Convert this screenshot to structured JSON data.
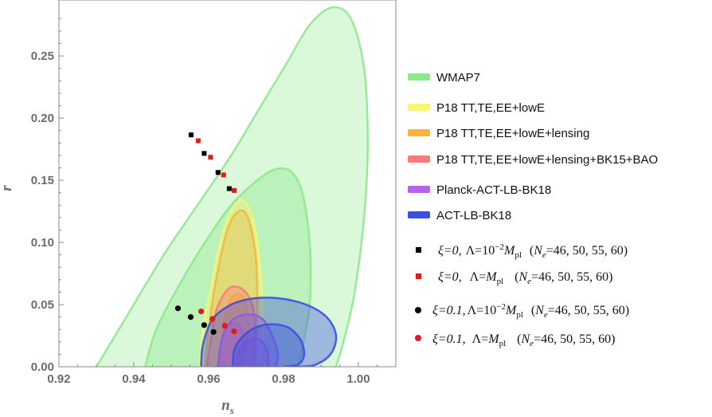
{
  "chart_data": {
    "type": "contour-scatter",
    "xlabel": "n_s",
    "ylabel": "r",
    "xlim": [
      0.92,
      1.01
    ],
    "ylim": [
      0.0,
      0.295
    ],
    "x_ticks": [
      0.92,
      0.94,
      0.96,
      0.98,
      1.0
    ],
    "x_tick_labels": [
      "0.92",
      "0.94",
      "0.96",
      "0.98",
      "1.00"
    ],
    "y_ticks": [
      0.0,
      0.05,
      0.1,
      0.15,
      0.2,
      0.25
    ],
    "y_tick_labels": [
      "0.00",
      "0.05",
      "0.10",
      "0.15",
      "0.20",
      "0.25"
    ],
    "grid": false,
    "legend_position": "right",
    "regions": [
      {
        "label": "WMAP7",
        "color": "#8ee88e",
        "contours": [
          [
            [
              0.93,
              0.0
            ],
            [
              0.938,
              0.04
            ],
            [
              0.948,
              0.09
            ],
            [
              0.957,
              0.13
            ],
            [
              0.966,
              0.17
            ],
            [
              0.974,
              0.21
            ],
            [
              0.981,
              0.245
            ],
            [
              0.987,
              0.275
            ],
            [
              0.993,
              0.289
            ],
            [
              0.998,
              0.28
            ],
            [
              1.0015,
              0.24
            ],
            [
              1.0025,
              0.18
            ],
            [
              1.0015,
              0.12
            ],
            [
              0.999,
              0.06
            ],
            [
              0.996,
              0.02
            ],
            [
              0.994,
              0.0
            ]
          ],
          [
            [
              0.943,
              0.0
            ],
            [
              0.946,
              0.03
            ],
            [
              0.952,
              0.065
            ],
            [
              0.959,
              0.1
            ],
            [
              0.966,
              0.13
            ],
            [
              0.973,
              0.15
            ],
            [
              0.978,
              0.159
            ],
            [
              0.982,
              0.157
            ],
            [
              0.985,
              0.14
            ],
            [
              0.987,
              0.1
            ],
            [
              0.987,
              0.05
            ],
            [
              0.985,
              0.015
            ],
            [
              0.984,
              0.0
            ]
          ]
        ]
      },
      {
        "label": "P18 TT,TE,EE+lowE",
        "color": "#f8f570",
        "contours": [
          [
            [
              0.9575,
              0.0
            ],
            [
              0.9585,
              0.03
            ],
            [
              0.961,
              0.07
            ],
            [
              0.964,
              0.11
            ],
            [
              0.9675,
              0.132
            ],
            [
              0.97,
              0.131
            ],
            [
              0.9725,
              0.11
            ],
            [
              0.974,
              0.07
            ],
            [
              0.9745,
              0.03
            ],
            [
              0.974,
              0.0
            ]
          ],
          [
            [
              0.9625,
              0.0
            ],
            [
              0.963,
              0.02
            ],
            [
              0.9645,
              0.045
            ],
            [
              0.966,
              0.058
            ],
            [
              0.9685,
              0.056
            ],
            [
              0.97,
              0.04
            ],
            [
              0.9705,
              0.015
            ],
            [
              0.97,
              0.0
            ]
          ]
        ]
      },
      {
        "label": "P18 TT,TE,EE+lowE+lensing",
        "color": "#fbb43a",
        "contours": [
          [
            [
              0.959,
              0.0
            ],
            [
              0.96,
              0.03
            ],
            [
              0.962,
              0.07
            ],
            [
              0.965,
              0.11
            ],
            [
              0.968,
              0.125
            ],
            [
              0.9705,
              0.12
            ],
            [
              0.9725,
              0.09
            ],
            [
              0.973,
              0.05
            ],
            [
              0.9725,
              0.015
            ],
            [
              0.972,
              0.0
            ]
          ],
          [
            [
              0.963,
              0.0
            ],
            [
              0.9635,
              0.025
            ],
            [
              0.965,
              0.048
            ],
            [
              0.967,
              0.058
            ],
            [
              0.9695,
              0.054
            ],
            [
              0.9705,
              0.035
            ],
            [
              0.97,
              0.01
            ],
            [
              0.9695,
              0.0
            ]
          ]
        ]
      },
      {
        "label": "P18 TT,TE,EE+lowE+lensing+BK15+BAO",
        "color": "#fa7a7a",
        "contours": [
          [
            [
              0.9595,
              0.0
            ],
            [
              0.9605,
              0.02
            ],
            [
              0.962,
              0.045
            ],
            [
              0.965,
              0.062
            ],
            [
              0.968,
              0.064
            ],
            [
              0.971,
              0.055
            ],
            [
              0.9725,
              0.035
            ],
            [
              0.9725,
              0.012
            ],
            [
              0.972,
              0.0
            ]
          ],
          [
            [
              0.9625,
              0.0
            ],
            [
              0.963,
              0.015
            ],
            [
              0.9645,
              0.03
            ],
            [
              0.9665,
              0.035
            ],
            [
              0.9685,
              0.032
            ],
            [
              0.9695,
              0.018
            ],
            [
              0.969,
              0.005
            ],
            [
              0.9685,
              0.0
            ]
          ]
        ]
      },
      {
        "label": "Planck-ACT-LB-BK18",
        "color": "#b765e8",
        "contours": [
          [
            [
              0.9625,
              0.0
            ],
            [
              0.9635,
              0.022
            ],
            [
              0.9665,
              0.038
            ],
            [
              0.971,
              0.042
            ],
            [
              0.9745,
              0.038
            ],
            [
              0.977,
              0.025
            ],
            [
              0.9785,
              0.01
            ],
            [
              0.978,
              0.0
            ]
          ],
          [
            [
              0.9675,
              0.0
            ],
            [
              0.968,
              0.012
            ],
            [
              0.9705,
              0.021
            ],
            [
              0.9735,
              0.022
            ],
            [
              0.9755,
              0.014
            ],
            [
              0.976,
              0.004
            ],
            [
              0.9755,
              0.0
            ]
          ]
        ]
      },
      {
        "label": "ACT-LB-BK18",
        "color": "#3b4fe0",
        "contours": [
          [
            [
              0.958,
              0.003
            ],
            [
              0.9585,
              0.018
            ],
            [
              0.961,
              0.038
            ],
            [
              0.966,
              0.05
            ],
            [
              0.972,
              0.055
            ],
            [
              0.979,
              0.055
            ],
            [
              0.986,
              0.05
            ],
            [
              0.9915,
              0.04
            ],
            [
              0.994,
              0.026
            ],
            [
              0.993,
              0.012
            ],
            [
              0.9895,
              0.003
            ],
            [
              0.984,
              0.0
            ],
            [
              0.962,
              0.0
            ]
          ],
          [
            [
              0.9665,
              0.0
            ],
            [
              0.967,
              0.015
            ],
            [
              0.9705,
              0.028
            ],
            [
              0.9755,
              0.034
            ],
            [
              0.981,
              0.032
            ],
            [
              0.9845,
              0.022
            ],
            [
              0.9855,
              0.01
            ],
            [
              0.984,
              0.002
            ],
            [
              0.98,
              0.0
            ]
          ]
        ]
      }
    ],
    "series": [
      {
        "label": "ξ=0, Λ=10⁻²Mpl (Ne=46, 50, 55, 60)",
        "marker": "square",
        "color": "#000000",
        "x": [
          0.9553,
          0.9588,
          0.9625,
          0.9655
        ],
        "y": [
          0.1865,
          0.1716,
          0.1563,
          0.1433
        ]
      },
      {
        "label": "ξ=0, Λ=Mpl (Ne=46, 50, 55, 60)",
        "marker": "square",
        "color": "#e31a1c",
        "x": [
          0.9572,
          0.9605,
          0.964,
          0.9668
        ],
        "y": [
          0.1818,
          0.1685,
          0.1543,
          0.1418
        ]
      },
      {
        "label": "ξ=0.1, Λ=10⁻²Mpl (Ne=46, 50, 55, 60)",
        "marker": "circle",
        "color": "#000000",
        "x": [
          0.9518,
          0.9552,
          0.9588,
          0.9613
        ],
        "y": [
          0.047,
          0.04,
          0.0335,
          0.028
        ]
      },
      {
        "label": "ξ=0.1, Λ=Mpl (Ne=46, 50, 55, 60)",
        "marker": "circle",
        "color": "#e31a1c",
        "x": [
          0.958,
          0.961,
          0.9643,
          0.9668
        ],
        "y": [
          0.0445,
          0.0385,
          0.033,
          0.0285
        ]
      }
    ]
  },
  "legend": {
    "wmap7": "WMAP7",
    "p18_1": "P18 TT,TE,EE+lowE",
    "p18_2": "P18 TT,TE,EE+lowE+lensing",
    "p18_3": "P18 TT,TE,EE+lowE+lensing+BK15+BAO",
    "pact": "Planck-ACT-LB-BK18",
    "act": "ACT-LB-BK18",
    "s1_xi": "ξ=0,",
    "s1_lam": "Λ=10",
    "s1_exp": "−2",
    "s1_m": "M",
    "s1_sub": "pl",
    "s1_n": "N",
    "s1_nsub": "e",
    "s1_vals": "=46, 50, 55, 60)",
    "s2_xi": "ξ=0,",
    "s2_lam": "Λ=",
    "s2_m": "M",
    "s2_sub": "pl",
    "s2_n": "N",
    "s2_nsub": "e",
    "s2_vals": "=46, 50, 55, 60)",
    "s3_xi": "ξ=0.1,",
    "s3_lam": "Λ=10",
    "s3_exp": "−2",
    "s3_m": "M",
    "s3_sub": "pl",
    "s3_n": "N",
    "s3_nsub": "e",
    "s3_vals": "=46, 50, 55, 60)",
    "s4_xi": "ξ=0.1,",
    "s4_lam": "Λ=",
    "s4_m": "M",
    "s4_sub": "pl",
    "s4_n": "N",
    "s4_nsub": "e",
    "s4_vals": "=46, 50, 55, 60)"
  },
  "axes": {
    "x_label_main": "n",
    "x_label_sub": "s",
    "y_label": "r"
  }
}
